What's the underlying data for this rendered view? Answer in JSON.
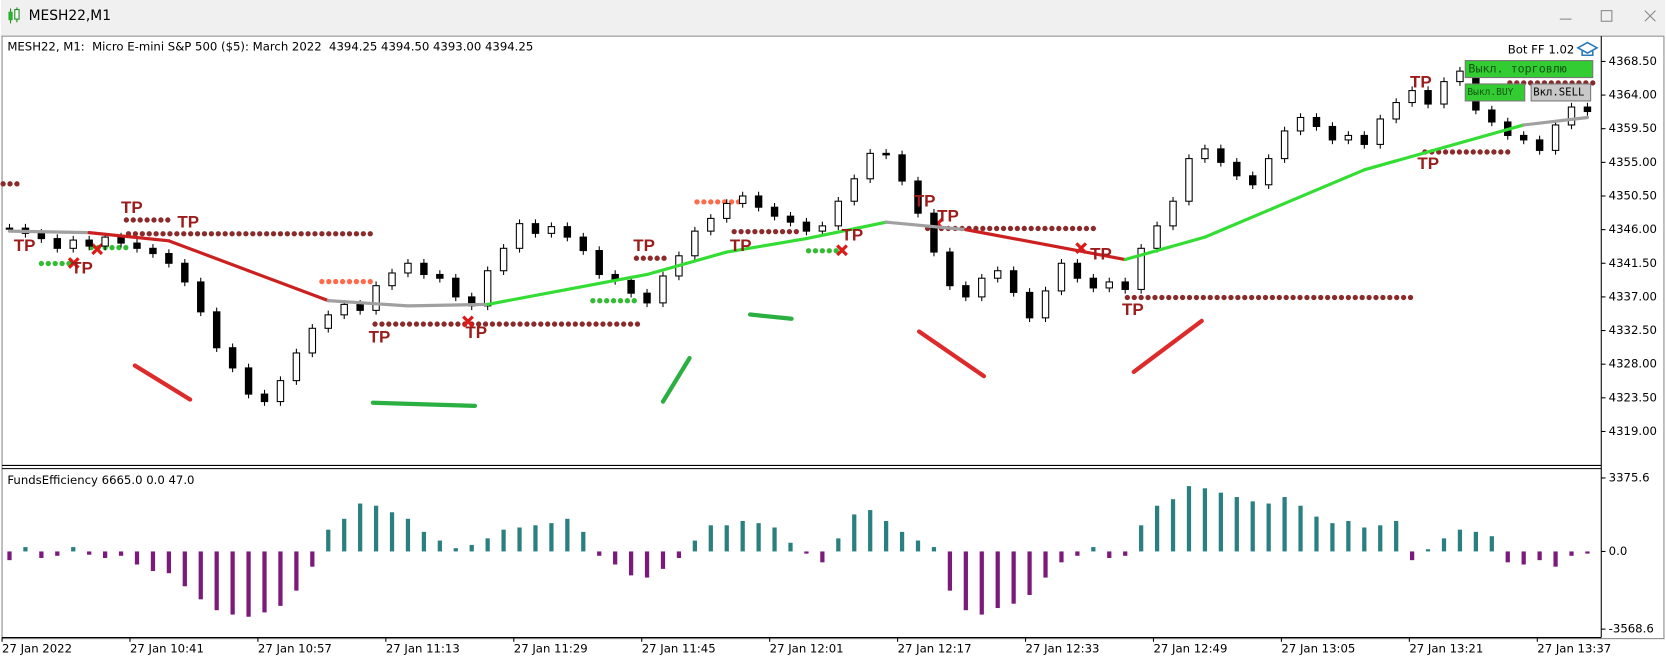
{
  "window": {
    "title": "MESH22,M1"
  },
  "chart": {
    "header": "MESH22, M1:  Micro E-mini S&P 500 ($5): March 2022  4394.25 4394.50 4393.00 4394.25",
    "bot": "Bot FF 1.02",
    "buttons": [
      "Выкл. торговлю",
      "Выкл.BUY",
      "Вкл.SELL"
    ],
    "ylim": [
      4314.6,
      4371.6
    ],
    "yticks": [
      {
        "value": 4368.5,
        "label": "4368.50"
      },
      {
        "value": 4364,
        "label": "4364.00"
      },
      {
        "value": 4359.5,
        "label": "4359.50"
      },
      {
        "value": 4355,
        "label": "4355.00"
      },
      {
        "value": 4350.5,
        "label": "4350.50"
      },
      {
        "value": 4346,
        "label": "4346.00"
      },
      {
        "value": 4341.5,
        "label": "4341.50"
      },
      {
        "value": 4337,
        "label": "4337.00"
      },
      {
        "value": 4332.5,
        "label": "4332.50"
      },
      {
        "value": 4328,
        "label": "4328.00"
      },
      {
        "value": 4323.5,
        "label": "4323.50"
      },
      {
        "value": 4319,
        "label": "4319.00"
      }
    ],
    "close": [
      4346.2,
      4345.5,
      4344.8,
      4343.5,
      4344.6,
      4343.8,
      4345.0,
      4344.2,
      4343.5,
      4342.8,
      4341.5,
      4339.0,
      4335.0,
      4330.2,
      4327.5,
      4324.0,
      4323.0,
      4325.8,
      4329.5,
      4332.8,
      4334.6,
      4336.0,
      4335.2,
      4338.5,
      4340.2,
      4341.5,
      4340.0,
      4339.5,
      4337.0,
      4335.8,
      4340.5,
      4343.5,
      4346.8,
      4345.5,
      4346.4,
      4345.0,
      4343.2,
      4340.0,
      4339.2,
      4337.5,
      4336.2,
      4339.8,
      4342.5,
      4345.8,
      4347.5,
      4349.5,
      4350.5,
      4349.0,
      4347.8,
      4347.0,
      4345.8,
      4346.5,
      4349.8,
      4352.8,
      4356.2,
      4356.0,
      4352.5,
      4348.2,
      4343.0,
      4338.5,
      4337.0,
      4339.5,
      4340.5,
      4337.6,
      4334.2,
      4337.8,
      4341.5,
      4339.5,
      4338.2,
      4339.0,
      4338.0,
      4343.5,
      4346.5,
      4349.8,
      4355.5,
      4356.8,
      4355.0,
      4353.2,
      4352.0,
      4355.5,
      4359.2,
      4361.0,
      4359.8,
      4358.0,
      4358.6,
      4357.4,
      4360.8,
      4363.0,
      4364.6,
      4362.8,
      4365.8,
      4367.2,
      4362.0,
      4360.4,
      4358.6,
      4358.0,
      4356.6,
      4360.0,
      4362.4,
      4361.8
    ],
    "ma": {
      "values": [
        4345.8,
        4345.6,
        4344.5,
        4340.5,
        4336.5,
        4335.8,
        4336.0,
        4338.0,
        4340.0,
        4343.0,
        4344.8,
        4347.0,
        4346.0,
        4344.0,
        4342.0,
        4345.0,
        4349.5,
        4354.0,
        4357.0,
        4360.0,
        4361.0
      ],
      "colors": [
        "#a0a0a0",
        "#cc2020",
        "#cc2020",
        "#cc2020",
        "#a0a0a0",
        "#a0a0a0",
        "#33dd33",
        "#33dd33",
        "#33dd33",
        "#33dd33",
        "#33dd33",
        "#a0a0a0",
        "#cc2020",
        "#cc2020",
        "#33dd33",
        "#33dd33",
        "#33dd33",
        "#33dd33",
        "#33dd33",
        "#a0a0a0"
      ]
    },
    "tp_labels": [
      "TP",
      "TP",
      "TP",
      "TP",
      "TP",
      "TP",
      "TP",
      "TP",
      "TP",
      "TP",
      "TP",
      "TP",
      "TP",
      "TP",
      "TP",
      "TP"
    ]
  },
  "indicator": {
    "label": "FundsEfficiency 6665.0 0.0 47.0",
    "ylim": [
      -3907,
      3756
    ],
    "yticks": [
      3375.6,
      {
        "value": 0,
        "label": "0.0"
      },
      -3568.6
    ],
    "up_color": "#2a8080",
    "down_color": "#7b1a7b",
    "values": [
      -400,
      200,
      -300,
      -200,
      200,
      -150,
      -300,
      -200,
      -600,
      -900,
      -1000,
      -1600,
      -2200,
      -2700,
      -2900,
      -3000,
      -2800,
      -2500,
      -1800,
      -700,
      1000,
      1500,
      2200,
      2100,
      1800,
      1500,
      900,
      500,
      150,
      300,
      600,
      1000,
      1100,
      1200,
      1300,
      1500,
      900,
      -200,
      -600,
      -1100,
      -1200,
      -800,
      -300,
      500,
      1200,
      1200,
      1400,
      1300,
      1100,
      400,
      -100,
      -500,
      600,
      1700,
      1900,
      1400,
      900,
      500,
      200,
      -1800,
      -2700,
      -2900,
      -2600,
      -2400,
      -2000,
      -1200,
      -500,
      -200,
      200,
      -300,
      -200,
      1200,
      2100,
      2400,
      3000,
      2900,
      2700,
      2500,
      2300,
      2200,
      2500,
      2100,
      1600,
      1300,
      1400,
      1100,
      1200,
      1400,
      -400,
      100,
      600,
      1000,
      900,
      700,
      -500,
      -600,
      -400,
      -700,
      -200,
      -100
    ]
  },
  "time_labels": [
    "27 Jan 2022",
    "27 Jan 10:41",
    "27 Jan 10:57",
    "27 Jan 11:13",
    "27 Jan 11:29",
    "27 Jan 11:45",
    "27 Jan 12:01",
    "27 Jan 12:17",
    "27 Jan 12:33",
    "27 Jan 12:49",
    "27 Jan 13:05",
    "27 Jan 13:21",
    "27 Jan 13:37"
  ]
}
